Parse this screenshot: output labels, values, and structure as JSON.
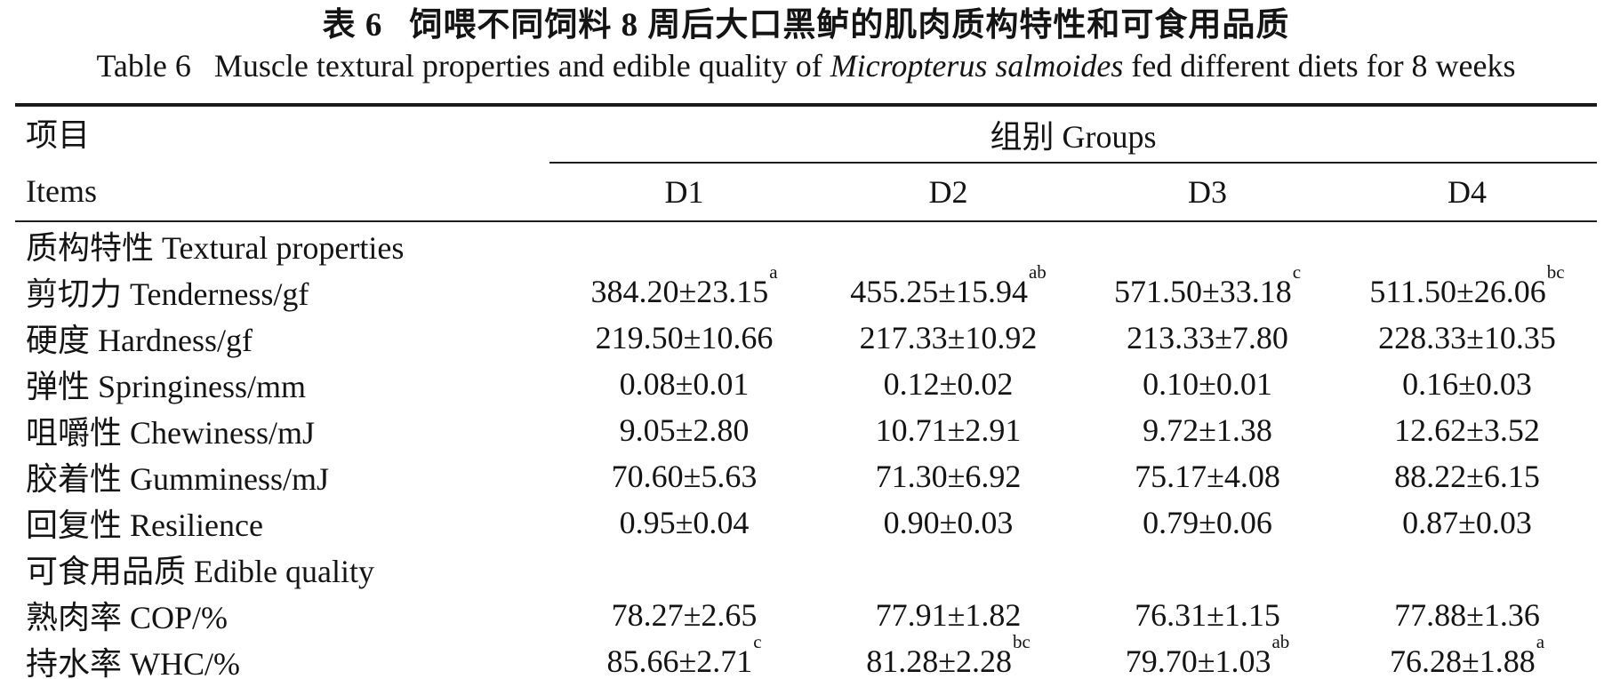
{
  "title": {
    "zh_label": "表 6",
    "zh_text": "饲喂不同饲料 8 周后大口黑鲈的肌肉质构特性和可食用品质",
    "en_label": "Table 6",
    "en_prefix": "Muscle textural properties and edible quality of ",
    "en_species_italic": "Micropterus salmoides",
    "en_suffix": " fed different diets for 8 weeks"
  },
  "table": {
    "items_header_zh": "项目",
    "items_header_en": "Items",
    "groups_header": "组别 Groups",
    "group_columns": [
      "D1",
      "D2",
      "D3",
      "D4"
    ],
    "rows": [
      {
        "type": "section",
        "label": "质构特性 Textural properties"
      },
      {
        "type": "data",
        "label": "剪切力 Tenderness/gf",
        "values": [
          {
            "v": "384.20±23.15",
            "sup": "a"
          },
          {
            "v": "455.25±15.94",
            "sup": "ab"
          },
          {
            "v": "571.50±33.18",
            "sup": "c"
          },
          {
            "v": "511.50±26.06",
            "sup": "bc"
          }
        ]
      },
      {
        "type": "data",
        "label": "硬度 Hardness/gf",
        "values": [
          {
            "v": "219.50±10.66",
            "sup": ""
          },
          {
            "v": "217.33±10.92",
            "sup": ""
          },
          {
            "v": "213.33±7.80",
            "sup": ""
          },
          {
            "v": "228.33±10.35",
            "sup": ""
          }
        ]
      },
      {
        "type": "data",
        "label": "弹性 Springiness/mm",
        "values": [
          {
            "v": "0.08±0.01",
            "sup": ""
          },
          {
            "v": "0.12±0.02",
            "sup": ""
          },
          {
            "v": "0.10±0.01",
            "sup": ""
          },
          {
            "v": "0.16±0.03",
            "sup": ""
          }
        ]
      },
      {
        "type": "data",
        "label": "咀嚼性 Chewiness/mJ",
        "values": [
          {
            "v": "9.05±2.80",
            "sup": ""
          },
          {
            "v": "10.71±2.91",
            "sup": ""
          },
          {
            "v": "9.72±1.38",
            "sup": ""
          },
          {
            "v": "12.62±3.52",
            "sup": ""
          }
        ]
      },
      {
        "type": "data",
        "label": "胶着性 Gumminess/mJ",
        "values": [
          {
            "v": "70.60±5.63",
            "sup": ""
          },
          {
            "v": "71.30±6.92",
            "sup": ""
          },
          {
            "v": "75.17±4.08",
            "sup": ""
          },
          {
            "v": "88.22±6.15",
            "sup": ""
          }
        ]
      },
      {
        "type": "data",
        "label": "回复性 Resilience",
        "values": [
          {
            "v": "0.95±0.04",
            "sup": ""
          },
          {
            "v": "0.90±0.03",
            "sup": ""
          },
          {
            "v": "0.79±0.06",
            "sup": ""
          },
          {
            "v": "0.87±0.03",
            "sup": ""
          }
        ]
      },
      {
        "type": "section",
        "label": "可食用品质 Edible quality"
      },
      {
        "type": "data",
        "label": "熟肉率 COP/%",
        "values": [
          {
            "v": "78.27±2.65",
            "sup": ""
          },
          {
            "v": "77.91±1.82",
            "sup": ""
          },
          {
            "v": "76.31±1.15",
            "sup": ""
          },
          {
            "v": "77.88±1.36",
            "sup": ""
          }
        ]
      },
      {
        "type": "data",
        "label": "持水率 WHC/%",
        "values": [
          {
            "v": "85.66±2.71",
            "sup": "c"
          },
          {
            "v": "81.28±2.28",
            "sup": "bc"
          },
          {
            "v": "79.70±1.03",
            "sup": "ab"
          },
          {
            "v": "76.28±1.88",
            "sup": "a"
          }
        ]
      }
    ]
  }
}
